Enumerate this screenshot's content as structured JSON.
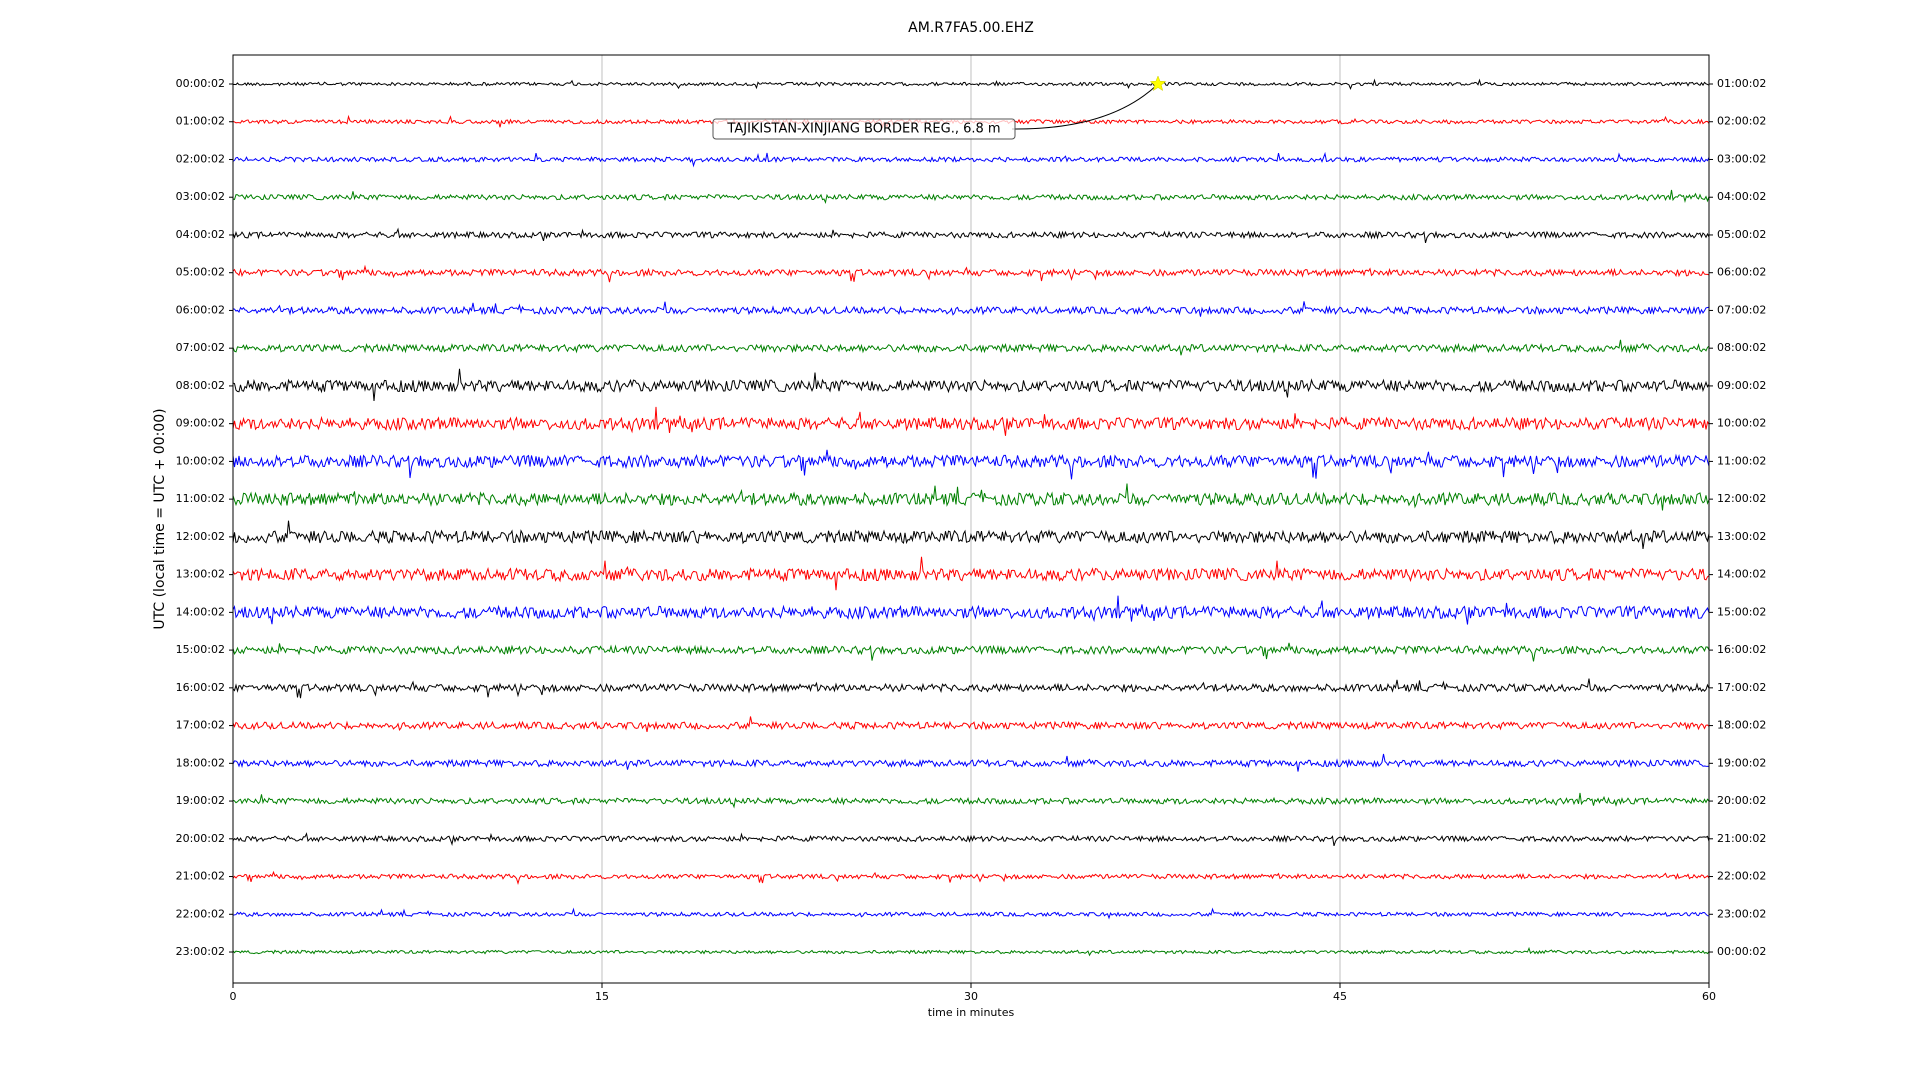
{
  "chart_data": {
    "type": "dayplot",
    "title": "AM.R7FA5.00.EHZ",
    "xlabel": "time in minutes",
    "ylabel": "UTC (local time = UTC + 00:00)",
    "xlim": [
      0,
      60
    ],
    "xticks": [
      0,
      15,
      30,
      45,
      60
    ],
    "grid": true,
    "colors": [
      "#000000",
      "#ff0000",
      "#0000ff",
      "#008000"
    ],
    "categories": [
      "00:00:02",
      "01:00:02",
      "02:00:02",
      "03:00:02",
      "04:00:02",
      "05:00:02",
      "06:00:02",
      "07:00:02",
      "08:00:02",
      "09:00:02",
      "10:00:02",
      "11:00:02",
      "12:00:02",
      "13:00:02",
      "14:00:02",
      "15:00:02",
      "16:00:02",
      "17:00:02",
      "18:00:02",
      "19:00:02",
      "20:00:02",
      "21:00:02",
      "22:00:02",
      "23:00:02"
    ],
    "right_categories": [
      "01:00:02",
      "02:00:02",
      "03:00:02",
      "04:00:02",
      "05:00:02",
      "06:00:02",
      "07:00:02",
      "08:00:02",
      "09:00:02",
      "10:00:02",
      "11:00:02",
      "12:00:02",
      "13:00:02",
      "14:00:02",
      "15:00:02",
      "16:00:02",
      "17:00:02",
      "18:00:02",
      "19:00:02",
      "20:00:02",
      "21:00:02",
      "22:00:02",
      "23:00:02",
      "00:00:02"
    ],
    "event": {
      "label": "TAJIKISTAN-XINJIANG BORDER REG., 6.8 m",
      "x": 37.6,
      "color": "#ffff00"
    }
  }
}
